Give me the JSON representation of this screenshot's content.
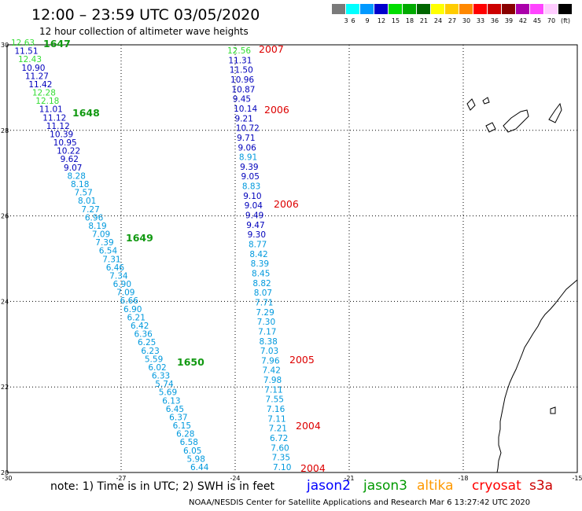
{
  "header": {
    "title": "12:00 – 23:59 UTC 03/05/2020",
    "subtitle": "12 hour collection of altimeter wave heights"
  },
  "color_scale": {
    "swatches": [
      "#7a7a7a",
      "#00ffff",
      "#0099ff",
      "#0000cc",
      "#00dd00",
      "#00aa00",
      "#006600",
      "#ffff00",
      "#ffcc00",
      "#ff8800",
      "#ff0000",
      "#cc0000",
      "#880000",
      "#aa00aa",
      "#ff44ff",
      "#ffccff",
      "#000000"
    ],
    "labels": [
      "3",
      "6",
      "9",
      "12",
      "15",
      "18",
      "21",
      "24",
      "27",
      "30",
      "33",
      "36",
      "39",
      "42",
      "45",
      "70",
      "(ft)"
    ]
  },
  "axes": {
    "lon_ticks": [
      "-30",
      "-27",
      "-24",
      "-21",
      "-18",
      "-15"
    ],
    "lat_ticks": [
      "30",
      "28",
      "26",
      "24",
      "22",
      "20"
    ],
    "lon_range": [
      -30,
      -15
    ],
    "lat_range": [
      20,
      30
    ]
  },
  "tracks": {
    "west": {
      "values": [
        "12.63",
        "11.51",
        "12.43",
        "10.90",
        "11.27",
        "11.42",
        "12.28",
        "12.18",
        "11.01",
        "11.12",
        "11.12",
        "10.39",
        "10.95",
        "10.22",
        "9.62",
        "9.07",
        "8.28",
        "8.18",
        "7.57",
        "8.01",
        "7.27",
        "6.96",
        "8.19",
        "7.09",
        "7.39",
        "6.54",
        "7.31",
        "6.46",
        "7.34",
        "6.90",
        "7.09",
        "6.66",
        "6.90",
        "6.21",
        "6.42",
        "6.36",
        "6.25",
        "6.23",
        "5.59",
        "6.02",
        "6.33",
        "5.74",
        "5.69",
        "6.13",
        "6.45",
        "6.37",
        "6.15",
        "6.28",
        "6.58",
        "6.05",
        "5.98",
        "6.44"
      ],
      "labels": [
        "1647",
        "1648",
        "1649",
        "1650"
      ]
    },
    "east": {
      "values": [
        "12.56",
        "11.31",
        "11.50",
        "10.96",
        "10.87",
        "9.45",
        "10.14",
        "9.21",
        "10.72",
        "9.71",
        "9.06",
        "8.91",
        "9.39",
        "9.05",
        "8.83",
        "9.10",
        "9.04",
        "9.49",
        "9.47",
        "9.30",
        "8.77",
        "8.42",
        "8.39",
        "8.45",
        "8.82",
        "8.07",
        "7.71",
        "7.29",
        "7.30",
        "7.17",
        "8.38",
        "7.03",
        "7.96",
        "7.42",
        "7.98",
        "7.11",
        "7.55",
        "7.16",
        "7.11",
        "7.21",
        "6.72",
        "7.60",
        "7.35",
        "7.10"
      ],
      "labels": [
        "2007",
        "2006",
        "2006",
        "2005",
        "2004",
        "2004"
      ]
    }
  },
  "footer": {
    "note": "note: 1) Time is in UTC; 2) SWH is in feet",
    "legend": [
      {
        "name": "jason2",
        "color": "#0000ff"
      },
      {
        "name": "jason3",
        "color": "#009900"
      },
      {
        "name": "altika",
        "color": "#ff9900"
      },
      {
        "name": "cryosat",
        "color": "#ff0000"
      },
      {
        "name": "s3a",
        "color": "#cc0000"
      }
    ],
    "credit": "NOAA/NESDIS Center for Satellite Applications and Research   Mar  6 13:27:42 UTC 2020"
  }
}
